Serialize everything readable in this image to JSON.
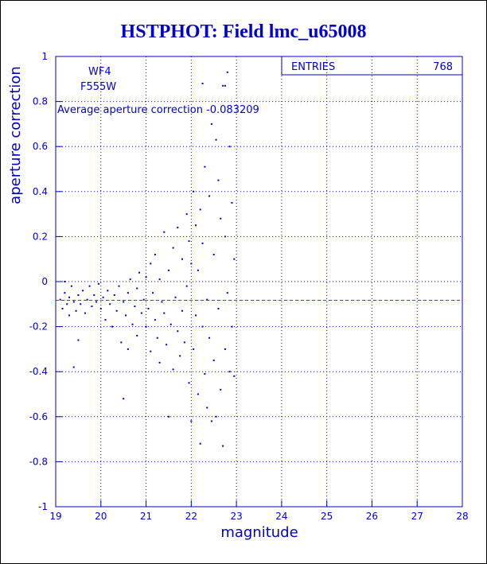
{
  "chart_data": {
    "type": "scatter",
    "title": "HSTPHOT: Field lmc_u65008",
    "x_label": "magnitude",
    "y_label": "aperture correction",
    "annotations": [
      "WF4",
      "F555W",
      "Average aperture correction -0.083209"
    ],
    "stats": {
      "label": "ENTRIES",
      "value": 768
    },
    "reference_line": {
      "value": -0.083209,
      "color": "#ff0000"
    },
    "color": "#0000cc",
    "grid": true,
    "xlim": [
      19,
      28
    ],
    "xticks": [
      19,
      20,
      21,
      22,
      23,
      24,
      25,
      26,
      27,
      28
    ],
    "ylim": [
      -1,
      1
    ],
    "yticks": [
      -1,
      -0.8,
      -0.6,
      -0.4,
      -0.2,
      0,
      0.2,
      0.4,
      0.6,
      0.8,
      1
    ],
    "x": [
      19.1,
      19.15,
      19.2,
      19.2,
      19.25,
      19.3,
      19.3,
      19.35,
      19.4,
      19.4,
      19.45,
      19.5,
      19.5,
      19.55,
      19.6,
      19.65,
      19.7,
      19.75,
      19.8,
      19.85,
      19.9,
      19.95,
      20.0,
      20.05,
      20.1,
      20.15,
      20.2,
      20.25,
      20.3,
      20.35,
      20.4,
      20.45,
      20.5,
      20.5,
      20.55,
      20.6,
      20.6,
      20.65,
      20.7,
      20.75,
      20.8,
      20.8,
      20.85,
      20.9,
      20.95,
      21.0,
      21.0,
      21.05,
      21.1,
      21.1,
      21.15,
      21.2,
      21.2,
      21.25,
      21.3,
      21.3,
      21.35,
      21.4,
      21.4,
      21.45,
      21.5,
      21.5,
      21.55,
      21.6,
      21.6,
      21.65,
      21.7,
      21.7,
      21.75,
      21.8,
      21.8,
      21.85,
      21.9,
      21.9,
      21.95,
      21.95,
      22.0,
      22.0,
      22.05,
      22.05,
      22.1,
      22.1,
      22.15,
      22.15,
      22.2,
      22.2,
      22.25,
      22.25,
      22.3,
      22.3,
      22.35,
      22.35,
      22.4,
      22.4,
      22.45,
      22.45,
      22.5,
      22.5,
      22.55,
      22.55,
      22.6,
      22.6,
      22.65,
      22.65,
      22.7,
      22.7,
      22.75,
      22.75,
      22.8,
      22.8,
      22.85,
      22.85,
      22.9,
      22.9,
      22.95,
      22.95,
      22.25,
      22.75
    ],
    "values": [
      -0.08,
      -0.12,
      -0.05,
      0.0,
      -0.1,
      -0.15,
      -0.07,
      -0.02,
      -0.09,
      -0.38,
      -0.13,
      -0.06,
      -0.26,
      -0.1,
      -0.04,
      -0.14,
      -0.08,
      -0.02,
      -0.11,
      -0.06,
      -0.09,
      -0.01,
      -0.12,
      -0.07,
      -0.17,
      -0.04,
      -0.1,
      -0.2,
      -0.06,
      -0.13,
      -0.02,
      -0.27,
      -0.52,
      -0.09,
      -0.15,
      -0.3,
      -0.05,
      0.01,
      -0.19,
      -0.11,
      -0.03,
      -0.24,
      0.04,
      -0.14,
      -0.08,
      -0.2,
      0.02,
      -0.12,
      0.08,
      -0.31,
      -0.05,
      -0.17,
      0.12,
      -0.25,
      0.01,
      -0.36,
      -0.09,
      0.22,
      -0.14,
      -0.28,
      0.05,
      -0.6,
      -0.19,
      0.15,
      -0.39,
      -0.07,
      0.24,
      -0.22,
      -0.33,
      0.1,
      -0.13,
      -0.27,
      0.3,
      -0.02,
      -0.45,
      0.18,
      -0.62,
      0.08,
      -0.3,
      0.4,
      -0.15,
      0.25,
      -0.5,
      0.05,
      -0.72,
      0.32,
      -0.2,
      0.17,
      -0.41,
      0.51,
      -0.08,
      -0.56,
      0.38,
      -0.25,
      0.7,
      -0.62,
      0.12,
      -0.35,
      0.63,
      -0.6,
      0.45,
      -0.12,
      0.28,
      -0.48,
      0.87,
      -0.73,
      0.2,
      -0.3,
      0.93,
      -0.05,
      0.6,
      -0.4,
      0.35,
      -0.2,
      0.1,
      -0.42,
      0.88,
      0.87
    ]
  }
}
